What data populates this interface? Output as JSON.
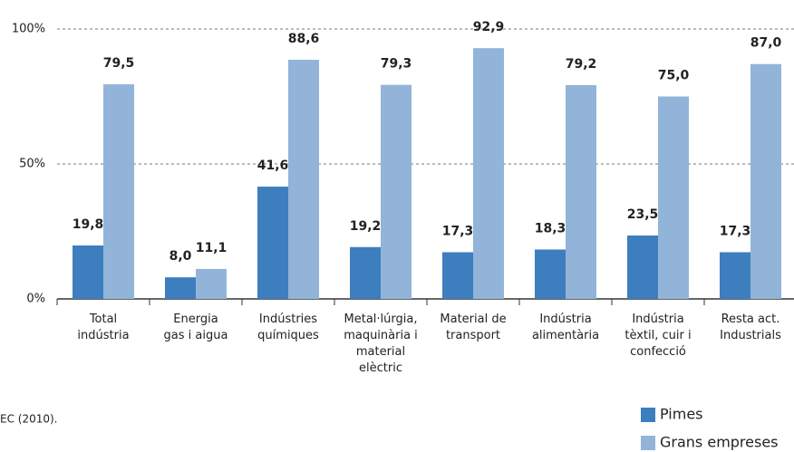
{
  "chart_data": {
    "type": "bar",
    "categories": [
      "Total\nindústria",
      "Energia\ngas i aigua",
      "Indústries\nquímiques",
      "Metal·lúrgia,\nmaquinària i\nmaterial\nelèctric",
      "Material de\ntransport",
      "Indústria\nalimentària",
      "Indústria\ntèxtil, cuir i\nconfecció",
      "Resta act.\nIndustrials"
    ],
    "series": [
      {
        "name": "Pimes",
        "color": "#3d7ebf",
        "values": [
          19.8,
          8.0,
          41.6,
          19.2,
          17.3,
          18.3,
          23.5,
          17.3
        ],
        "value_labels": [
          "19,8",
          "8,0",
          "41,6",
          "19,2",
          "17,3",
          "18,3",
          "23,5",
          "17,3"
        ]
      },
      {
        "name": "Grans empreses",
        "color": "#92b4d8",
        "values": [
          79.5,
          11.1,
          88.6,
          79.3,
          92.9,
          79.2,
          75.0,
          87.0
        ],
        "value_labels": [
          "79,5",
          "11,1",
          "88,6",
          "79,3",
          "92,9",
          "79,2",
          "75,0",
          "87,0"
        ]
      }
    ],
    "ylim": [
      0,
      100
    ],
    "yticks": [
      {
        "value": 0,
        "label": "0%"
      },
      {
        "value": 50,
        "label": "50%"
      },
      {
        "value": 100,
        "label": "100%"
      }
    ],
    "grid": true,
    "source": "EC (2010)."
  }
}
